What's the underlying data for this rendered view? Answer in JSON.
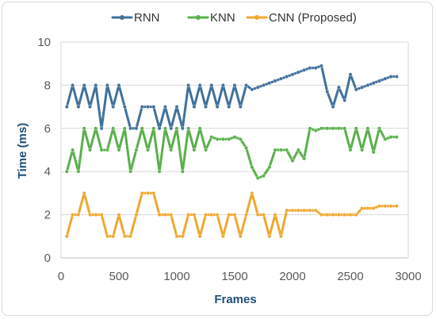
{
  "chart_data": {
    "type": "line",
    "title": "",
    "xlabel": "Frames",
    "ylabel": "Time (ms)",
    "xlim": [
      0,
      3000
    ],
    "ylim": [
      0,
      10
    ],
    "xticks": [
      "0",
      "500",
      "1000",
      "1500",
      "2000",
      "2500",
      "3000"
    ],
    "yticks": [
      "0",
      "2",
      "4",
      "6",
      "8",
      "10"
    ],
    "grid": "horizontal",
    "legend_position": "top",
    "series": [
      {
        "name": "RNN",
        "color": "#41719c",
        "x": [
          50,
          100,
          150,
          200,
          250,
          300,
          350,
          400,
          450,
          500,
          550,
          600,
          650,
          700,
          750,
          800,
          850,
          900,
          950,
          1000,
          1050,
          1100,
          1150,
          1200,
          1250,
          1300,
          1350,
          1400,
          1450,
          1500,
          1550,
          1600,
          1650,
          1700,
          1750,
          1800,
          1850,
          1900,
          1950,
          2000,
          2050,
          2100,
          2150,
          2200,
          2250,
          2300,
          2350,
          2400,
          2450,
          2500,
          2550,
          2600,
          2650,
          2700,
          2750,
          2800,
          2850,
          2900
        ],
        "y": [
          7,
          8,
          7,
          8,
          7,
          8,
          6,
          8,
          7,
          8,
          7,
          6,
          6,
          7,
          7,
          7,
          6,
          7,
          6,
          7,
          6,
          8,
          7,
          8,
          7,
          8,
          7,
          8,
          7,
          8,
          7,
          8,
          7.8,
          7.9,
          8.0,
          8.1,
          8.2,
          8.3,
          8.4,
          8.5,
          8.6,
          8.7,
          8.8,
          8.8,
          8.9,
          7.7,
          7,
          7.9,
          7.3,
          8.5,
          7.8,
          7.9,
          8.0,
          8.1,
          8.2,
          8.3,
          8.4,
          8.4
        ]
      },
      {
        "name": "KNN",
        "color": "#5ab04c",
        "x": [
          50,
          100,
          150,
          200,
          250,
          300,
          350,
          400,
          450,
          500,
          550,
          600,
          650,
          700,
          750,
          800,
          850,
          900,
          950,
          1000,
          1050,
          1100,
          1150,
          1200,
          1250,
          1300,
          1350,
          1400,
          1450,
          1500,
          1550,
          1600,
          1650,
          1700,
          1750,
          1800,
          1850,
          1900,
          1950,
          2000,
          2050,
          2100,
          2150,
          2200,
          2250,
          2300,
          2350,
          2400,
          2450,
          2500,
          2550,
          2600,
          2650,
          2700,
          2750,
          2800,
          2850,
          2900
        ],
        "y": [
          4,
          5,
          4,
          6,
          5,
          6,
          5,
          5,
          6,
          5,
          6,
          4,
          5,
          6,
          5,
          6,
          4,
          6,
          5,
          6,
          4,
          6,
          5,
          6,
          5,
          5.6,
          5.5,
          5.5,
          5.5,
          5.6,
          5.5,
          5.1,
          4.2,
          3.7,
          3.8,
          4.2,
          5,
          5,
          5,
          4.5,
          5,
          4.6,
          6,
          5.9,
          6,
          6,
          6,
          6,
          6,
          5,
          6,
          5,
          6,
          4.9,
          6,
          5.5,
          5.6,
          5.6
        ]
      },
      {
        "name": "CNN (Proposed)",
        "color": "#f0a830",
        "x": [
          50,
          100,
          150,
          200,
          250,
          300,
          350,
          400,
          450,
          500,
          550,
          600,
          650,
          700,
          750,
          800,
          850,
          900,
          950,
          1000,
          1050,
          1100,
          1150,
          1200,
          1250,
          1300,
          1350,
          1400,
          1450,
          1500,
          1550,
          1600,
          1650,
          1700,
          1750,
          1800,
          1850,
          1900,
          1950,
          2000,
          2050,
          2100,
          2150,
          2200,
          2250,
          2300,
          2350,
          2400,
          2450,
          2500,
          2550,
          2600,
          2650,
          2700,
          2750,
          2800,
          2850,
          2900
        ],
        "y": [
          1,
          2,
          2,
          3,
          2,
          2,
          2,
          1,
          1,
          2,
          1,
          1,
          2,
          3,
          3,
          3,
          2,
          2,
          2,
          1,
          1,
          2,
          2,
          1,
          2,
          2,
          2,
          1,
          2,
          2,
          1,
          2,
          3,
          2,
          2,
          1,
          2,
          1,
          2.2,
          2.2,
          2.2,
          2.2,
          2.2,
          2.2,
          2,
          2,
          2,
          2,
          2,
          2,
          2,
          2.3,
          2.3,
          2.3,
          2.4,
          2.4,
          2.4,
          2.4
        ]
      }
    ]
  }
}
